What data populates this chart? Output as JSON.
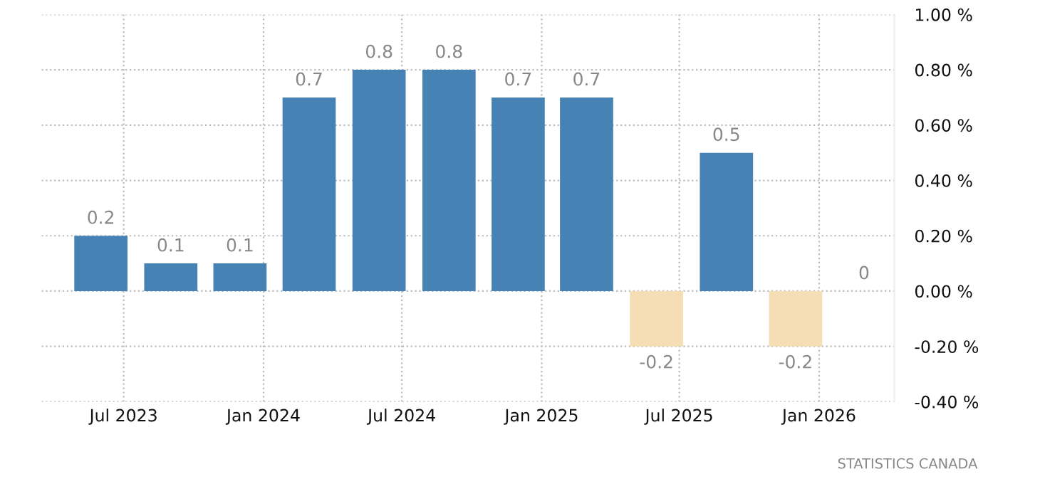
{
  "chart_data": {
    "type": "bar",
    "x": [
      "2023-06",
      "2023-09",
      "2023-12",
      "2024-03",
      "2024-06",
      "2024-09",
      "2024-12",
      "2025-03",
      "2025-06",
      "2025-09",
      "2025-12",
      "2026-03"
    ],
    "values": [
      0.2,
      0.1,
      0.1,
      0.7,
      0.8,
      0.8,
      0.7,
      0.7,
      -0.2,
      0.5,
      -0.2,
      0
    ],
    "colors": [
      "#4682b4",
      "#4682b4",
      "#4682b4",
      "#4682b4",
      "#4682b4",
      "#4682b4",
      "#4682b4",
      "#4682b4",
      "#f5deb3",
      "#4682b4",
      "#f5deb3",
      "#4682b4"
    ],
    "data_labels": true,
    "xlim": [
      "2023-03-15",
      "2026-04-10"
    ],
    "xticks": [
      {
        "value": "2023-07",
        "label": "Jul 2023"
      },
      {
        "value": "2024-01",
        "label": "Jan 2024"
      },
      {
        "value": "2024-07",
        "label": "Jul 2024"
      },
      {
        "value": "2025-01",
        "label": "Jan 2025"
      },
      {
        "value": "2025-07",
        "label": "Jul 2025"
      },
      {
        "value": "2026-01",
        "label": "Jan 2026"
      }
    ],
    "ylim": [
      -0.4,
      1.0
    ],
    "yticks": [
      {
        "value": -0.4,
        "label": "-0.40 %"
      },
      {
        "value": -0.2,
        "label": "-0.20 %"
      },
      {
        "value": 0,
        "label": "0.00 %"
      },
      {
        "value": 0.2,
        "label": "0.20 %"
      },
      {
        "value": 0.4,
        "label": "0.40 %"
      },
      {
        "value": 0.6,
        "label": "0.60 %"
      },
      {
        "value": 0.8,
        "label": "0.80 %"
      },
      {
        "value": 1.0,
        "label": "1.00 %"
      }
    ],
    "grid": true,
    "annotations": [
      "STATISTICS CANADA"
    ]
  }
}
